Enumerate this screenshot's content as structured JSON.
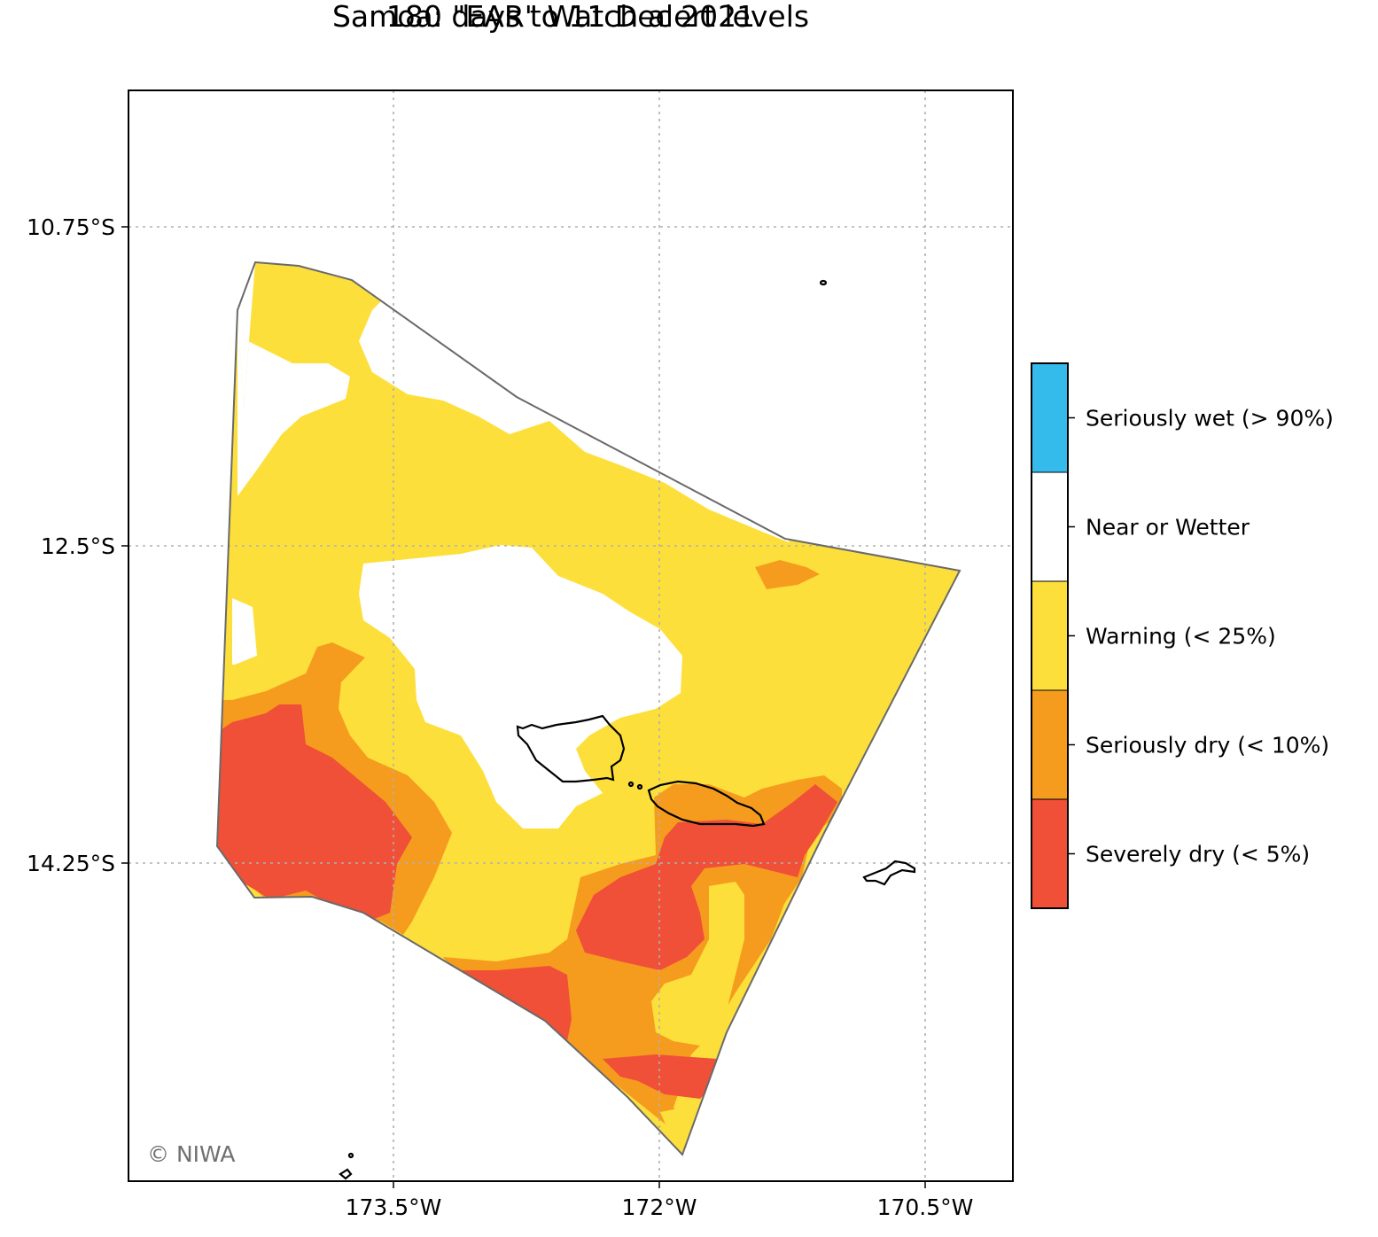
{
  "title": {
    "line1": "Samoa: \"EAR\" Watch alert levels",
    "line2": "180 days to 11 Dec 2021"
  },
  "map": {
    "lon_ticks": [
      "173.5°W",
      "172°W",
      "170.5°W"
    ],
    "lat_ticks": [
      "10.75°S",
      "12.5°S",
      "14.25°S"
    ],
    "credit": "© NIWA"
  },
  "legend": {
    "levels": [
      {
        "label": "Seriously wet (> 90%)",
        "color": "#35bbeb"
      },
      {
        "label": "Near or Wetter",
        "color": "#ffffff"
      },
      {
        "label": "Warning (< 25%)",
        "color": "#fddf3c"
      },
      {
        "label": "Seriously dry (< 10%)",
        "color": "#f59c1e"
      },
      {
        "label": "Severely dry (< 5%)",
        "color": "#ef5037"
      }
    ]
  },
  "colors": {
    "boundary": "#6a6a6a",
    "coastline": "#000000",
    "grid": "#b0b0b0"
  }
}
